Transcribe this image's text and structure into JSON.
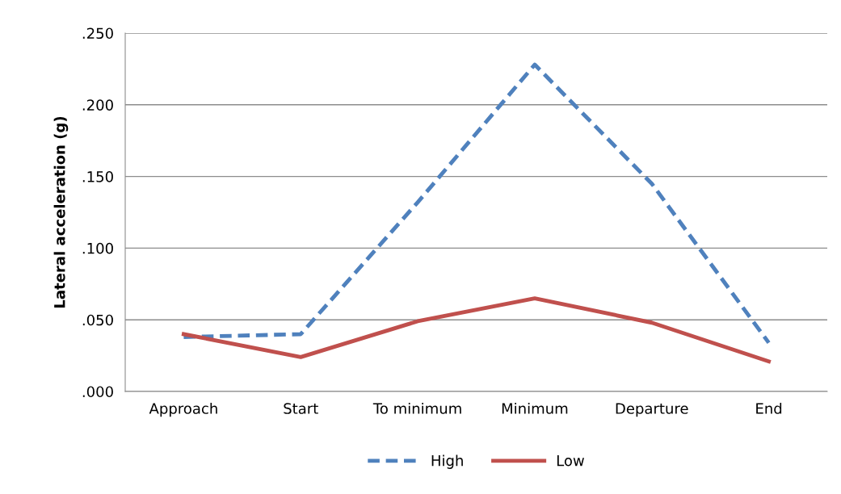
{
  "chart_data": {
    "type": "line",
    "ylabel": "Lateral acceleration (g)",
    "categories": [
      "Approach",
      "Start",
      "To minimum",
      "Minimum",
      "Departure",
      "End"
    ],
    "series": [
      {
        "name": "High",
        "color": "#4f81bd",
        "line_style": "dashed",
        "values": [
          0.038,
          0.04,
          0.132,
          0.228,
          0.145,
          0.034
        ]
      },
      {
        "name": "Low",
        "color": "#c0504d",
        "line_style": "solid",
        "values": [
          0.04,
          0.024,
          0.049,
          0.065,
          0.048,
          0.021
        ]
      }
    ],
    "ylim": [
      0,
      0.25
    ],
    "yticks": [
      {
        "value": 0,
        "label": ".000"
      },
      {
        "value": 0.05,
        "label": ".050"
      },
      {
        "value": 0.1,
        "label": ".100"
      },
      {
        "value": 0.15,
        "label": ".150"
      },
      {
        "value": 0.2,
        "label": ".200"
      },
      {
        "value": 0.25,
        "label": ".250"
      }
    ],
    "grid": "y",
    "legend": "bottom",
    "marker": "none"
  }
}
